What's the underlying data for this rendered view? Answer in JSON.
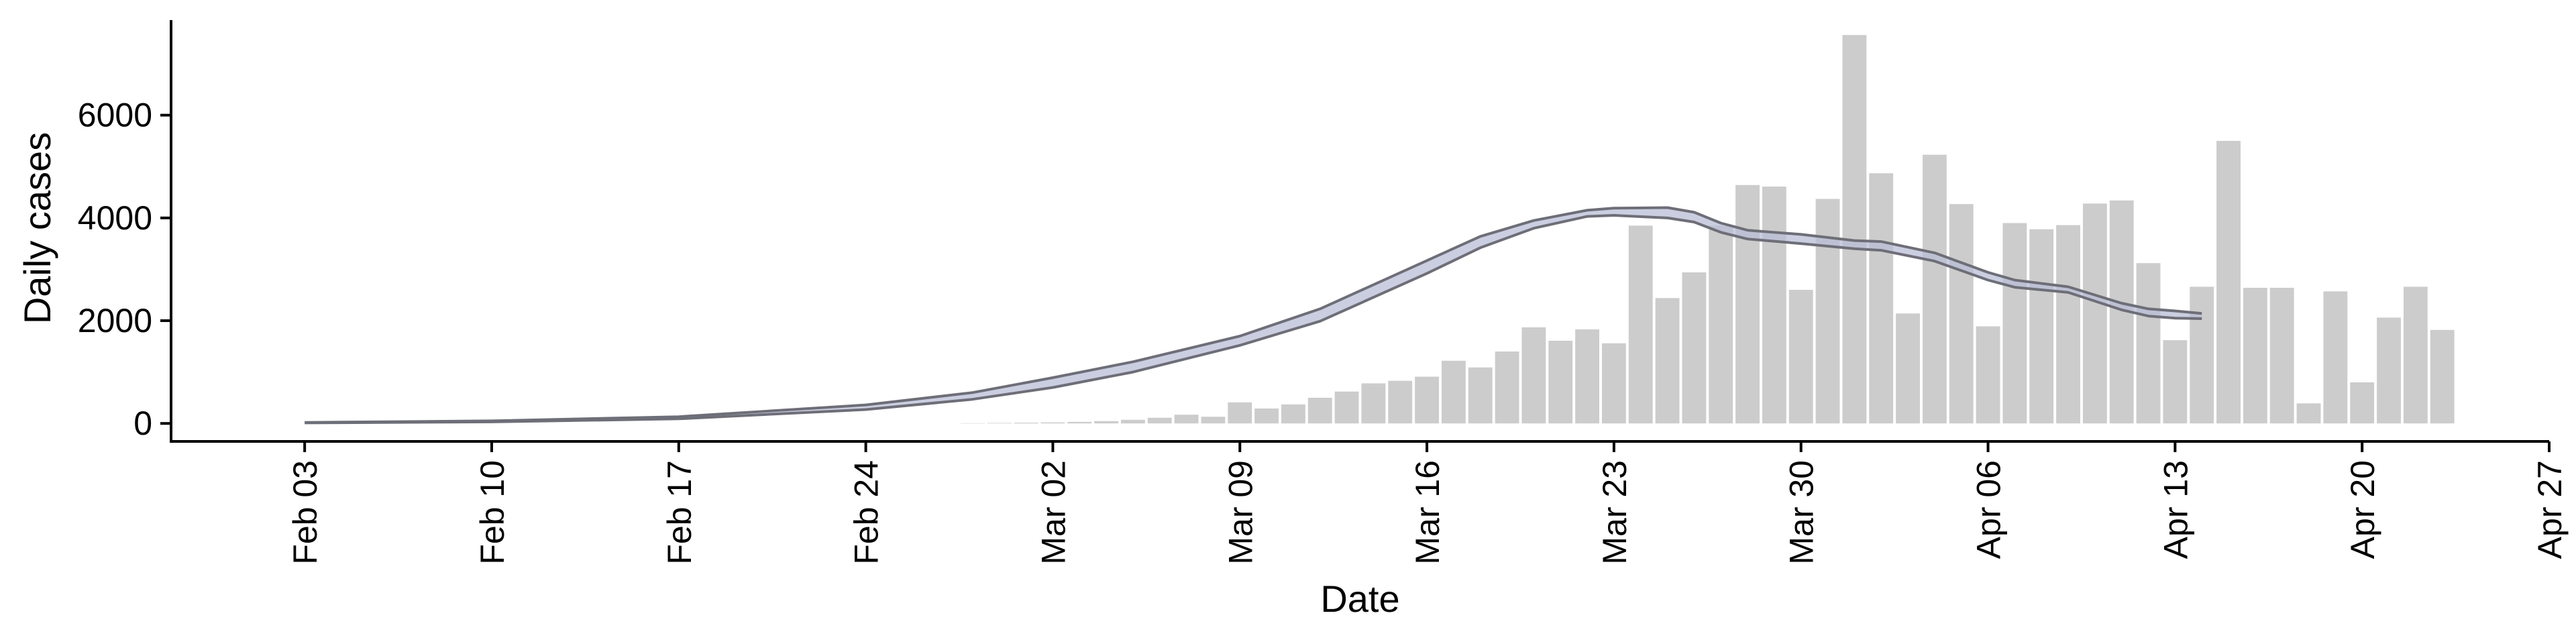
{
  "chart_data": {
    "type": "bar",
    "title": "",
    "xlabel": "Date",
    "ylabel": "Daily cases",
    "ylim": [
      -350,
      7850
    ],
    "xlim": [
      "2020-01-29",
      "2020-04-27"
    ],
    "yticks": [
      0,
      2000,
      4000,
      6000
    ],
    "xticks": [
      {
        "date": "2020-02-03",
        "label": "Feb 03"
      },
      {
        "date": "2020-02-10",
        "label": "Feb 10"
      },
      {
        "date": "2020-02-17",
        "label": "Feb 17"
      },
      {
        "date": "2020-02-24",
        "label": "Feb 24"
      },
      {
        "date": "2020-03-02",
        "label": "Mar 02"
      },
      {
        "date": "2020-03-09",
        "label": "Mar 09"
      },
      {
        "date": "2020-03-16",
        "label": "Mar 16"
      },
      {
        "date": "2020-03-23",
        "label": "Mar 23"
      },
      {
        "date": "2020-03-30",
        "label": "Mar 30"
      },
      {
        "date": "2020-04-06",
        "label": "Apr 06"
      },
      {
        "date": "2020-04-13",
        "label": "Apr 13"
      },
      {
        "date": "2020-04-20",
        "label": "Apr 20"
      },
      {
        "date": "2020-04-27",
        "label": "Apr 27"
      }
    ],
    "grid": false,
    "colors": {
      "bars": "#cccccc",
      "band_fill": "#b8bdd6",
      "band_edge": "#6e6e78",
      "axis": "#000000"
    },
    "bars": {
      "dates": [
        "2020-02-28",
        "2020-02-29",
        "2020-03-01",
        "2020-03-02",
        "2020-03-03",
        "2020-03-04",
        "2020-03-05",
        "2020-03-06",
        "2020-03-07",
        "2020-03-08",
        "2020-03-09",
        "2020-03-10",
        "2020-03-11",
        "2020-03-12",
        "2020-03-13",
        "2020-03-14",
        "2020-03-15",
        "2020-03-16",
        "2020-03-17",
        "2020-03-18",
        "2020-03-19",
        "2020-03-20",
        "2020-03-21",
        "2020-03-22",
        "2020-03-23",
        "2020-03-24",
        "2020-03-25",
        "2020-03-26",
        "2020-03-27",
        "2020-03-28",
        "2020-03-29",
        "2020-03-30",
        "2020-03-31",
        "2020-04-01",
        "2020-04-02",
        "2020-04-03",
        "2020-04-04",
        "2020-04-05",
        "2020-04-06",
        "2020-04-07",
        "2020-04-08",
        "2020-04-09",
        "2020-04-10",
        "2020-04-11",
        "2020-04-12",
        "2020-04-13",
        "2020-04-14",
        "2020-04-15",
        "2020-04-16",
        "2020-04-17",
        "2020-04-18",
        "2020-04-19",
        "2020-04-20",
        "2020-04-21",
        "2020-04-22",
        "2020-04-23"
      ],
      "values": [
        5,
        10,
        15,
        20,
        30,
        45,
        70,
        110,
        170,
        130,
        410,
        290,
        370,
        500,
        620,
        780,
        830,
        910,
        1220,
        1090,
        1400,
        1870,
        1610,
        1830,
        1560,
        3850,
        2440,
        2940,
        3850,
        4640,
        4610,
        2600,
        4370,
        7560,
        4870,
        2140,
        5230,
        4270,
        1890,
        3900,
        3780,
        3860,
        4280,
        4340,
        3120,
        1620,
        2660,
        5500,
        2640,
        2640,
        390,
        2570,
        800,
        2060,
        2660,
        1820
      ]
    },
    "series": [
      {
        "dates": [
          "2020-02-03",
          "2020-02-10",
          "2020-02-17",
          "2020-02-24",
          "2020-02-28",
          "2020-03-02",
          "2020-03-05",
          "2020-03-09",
          "2020-03-12",
          "2020-03-16",
          "2020-03-18",
          "2020-03-20",
          "2020-03-22",
          "2020-03-23",
          "2020-03-25",
          "2020-03-26",
          "2020-03-27",
          "2020-03-28",
          "2020-03-30",
          "2020-04-01",
          "2020-04-02",
          "2020-04-04",
          "2020-04-06",
          "2020-04-07",
          "2020-04-09",
          "2020-04-11",
          "2020-04-12",
          "2020-04-13",
          "2020-04-14"
        ],
        "lower": [
          10,
          30,
          90,
          270,
          470,
          700,
          1000,
          1520,
          1990,
          2920,
          3420,
          3800,
          4030,
          4050,
          4000,
          3920,
          3720,
          3590,
          3500,
          3400,
          3370,
          3160,
          2790,
          2650,
          2550,
          2210,
          2090,
          2050,
          2040
        ],
        "upper": [
          20,
          50,
          130,
          360,
          600,
          890,
          1200,
          1700,
          2230,
          3170,
          3640,
          3950,
          4150,
          4190,
          4200,
          4110,
          3900,
          3760,
          3680,
          3560,
          3540,
          3320,
          2940,
          2790,
          2660,
          2340,
          2230,
          2190,
          2140
        ]
      }
    ]
  }
}
